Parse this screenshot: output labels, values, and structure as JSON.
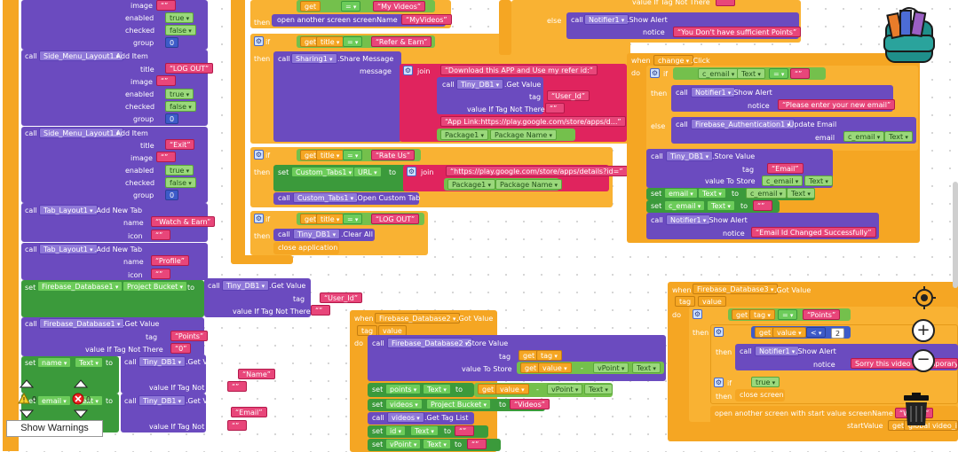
{
  "workspace": {
    "side_menu": [
      {
        "call": "call",
        "component": "Side_Menu_Layout1",
        "method": ".Add Item",
        "title": "",
        "image": "",
        "enabled": "true",
        "checked": "false",
        "group": "0"
      },
      {
        "call": "call",
        "component": "Side_Menu_Layout1",
        "method": ".Add Item",
        "title": "LOG OUT",
        "image": "",
        "enabled": "true",
        "checked": "false",
        "group": "0"
      },
      {
        "call": "call",
        "component": "Side_Menu_Layout1",
        "method": ".Add Item",
        "title": "Exit",
        "image": "",
        "enabled": "true",
        "checked": "false",
        "group": "0"
      }
    ],
    "labels": {
      "title": "title",
      "image": "image",
      "enabled": "enabled",
      "checked": "checked",
      "group": "group",
      "name": "name",
      "icon": "icon",
      "tag": "tag",
      "value_if": "value If Tag Not There",
      "then": "then",
      "do": "do",
      "if": "if",
      "else": "else",
      "when": "when",
      "to": "to",
      "set": "set",
      "call": "call",
      "message": "message",
      "notice": "notice",
      "join": "join",
      "value_to_store": "value To Store",
      "email": "email",
      "start_value": "startValue"
    },
    "tabs": [
      {
        "component": "Tab_Layout1",
        "method": ".Add New Tab",
        "name": "Watch & Earn",
        "icon": ""
      },
      {
        "component": "Tab_Layout1",
        "method": ".Add New Tab",
        "name": "Profile",
        "icon": ""
      }
    ],
    "firebase1": {
      "set_target": "Firebase_Database1",
      "prop": "Project Bucket",
      "tinydb": "Tiny_DB1",
      "get_value": ".Get Value",
      "tag": "User_Id",
      "default": ""
    },
    "firebase1_get": {
      "component": "Firebase_Database1",
      "method": ".Get Value",
      "tag": "Points",
      "default": "0"
    },
    "set_name": {
      "target": "name",
      "prop": "Text",
      "tinydb": "Tiny_DB1",
      "method": ".Get Value",
      "tag": "Name",
      "default": ""
    },
    "set_email": {
      "target": "email",
      "prop": "Text",
      "tinydb": "Tiny_DB1",
      "method": ".Get Value",
      "tag": "Email",
      "default": ""
    },
    "col2": {
      "top_if": {
        "get": "get",
        "var": "title",
        "op": "=",
        "value": "My Videos",
        "action": "open another screen  screenName",
        "screen": "MyVideos"
      },
      "refer": {
        "var": "title",
        "op": "=",
        "value": "Refer & Earn",
        "component": "Sharing1",
        "method": ".Share Message",
        "join_text": "Download this APP and Use my refer id:",
        "tinydb": "Tiny_DB1",
        "tinymethod": ".Get Value",
        "tag": "User_Id",
        "default": "",
        "link_text": "App Link:https://play.google.com/store/apps/d...",
        "pkg": "Package1",
        "pkgprop": "Package Name"
      },
      "rate": {
        "var": "title",
        "op": "=",
        "value": "Rate Us",
        "component": "Custom_Tabs1",
        "prop": "URL",
        "url": "https://play.google.com/store/apps/details?id=",
        "pkg": "Package1",
        "pkgprop": "Package Name",
        "open": ".Open Custom Tab"
      },
      "logout": {
        "var": "title",
        "op": "=",
        "value": "LOG OUT",
        "tinydb": "Tiny_DB1",
        "method": ".Clear All",
        "close": "close application"
      }
    },
    "col3_top": {
      "line1": "value If Tag Not There",
      "line1_val": "",
      "else_call": "Notifier1",
      "else_method": ".Show Alert",
      "notice": "You Don't have sufficient Points"
    },
    "change_click": {
      "when": "when",
      "component": "change",
      "event": ".Click",
      "cond_var": "c_email",
      "cond_prop": "Text",
      "op": "=",
      "cond_val": "",
      "notifier": "Notifier1",
      "notifier_method": ".Show Alert",
      "notice1": "Please enter your new email",
      "auth": "Firebase_Authentication1",
      "auth_method": ".Update Email",
      "auth_arg": "c_email",
      "auth_arg_prop": "Text",
      "store_comp": "Tiny_DB1",
      "store_method": ".Store Value",
      "store_tag": "Email",
      "store_val": "c_email",
      "store_val_prop": "Text",
      "set1_target": "email",
      "set1_prop": "Text",
      "set1_src": "c_email",
      "set1_src_prop": "Text",
      "set2_target": "c_email",
      "set2_prop": "Text",
      "set2_val": "",
      "notice2": "Email Id Changed Successfully"
    },
    "fb2": {
      "when": "when",
      "component": "Firebase_Database2",
      "event": ".Got Value",
      "param1": "tag",
      "param2": "value",
      "store_comp": "Firebase_Database2",
      "store_method": ".Store Value",
      "tag_get": "get",
      "tag_var": "tag",
      "val_get": "get",
      "val_var": "value",
      "minus": "-",
      "vpoint": "vPoint",
      "vprop": "Text",
      "set_points": "points",
      "set_points_prop": "Text",
      "set_videos": "videos",
      "set_videos_prop": "Project Bucket",
      "videos_val": "Videos",
      "get_tag_list": "videos",
      "get_tag_list_method": ".Get Tag List",
      "set_id": "id",
      "set_id_prop": "Text",
      "set_vpoint": "vPoint",
      "set_vpoint_prop": "Text"
    },
    "fb3": {
      "when": "when",
      "component": "Firebase_Database3",
      "event": ".Got Value",
      "param1": "tag",
      "param2": "value",
      "cond_var": "tag",
      "op": "=",
      "cond_val": "Points",
      "inner_var": "value",
      "inner_op": "<",
      "inner_val": "2",
      "notifier": "Notifier1",
      "notifier_method": ".Show Alert",
      "notice": "Sorry this video is Temporary disa",
      "true_val": "true",
      "close": "close screen",
      "open": "open another screen with start value  screenName",
      "screen": "Watch",
      "global": "global video_id"
    },
    "show_warnings": "Show Warnings",
    "warning_count": "0",
    "error_count": "0"
  }
}
